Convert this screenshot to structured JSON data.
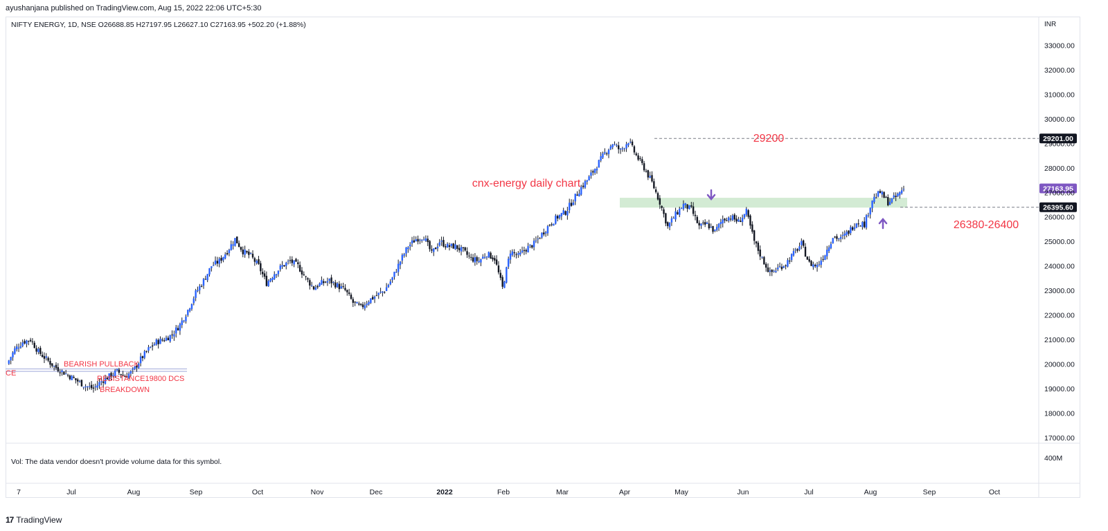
{
  "header": {
    "publisher": "ayushanjana published on TradingView.com, Aug 15, 2022 22:06 UTC+5:30",
    "symbol_line": "NIFTY ENERGY, 1D, NSE  O26688.85  H27197.95  L26627.10  C27163.95  +502.20 (+1.88%)"
  },
  "volume_note": "Vol: The data vendor doesn't provide volume data for this symbol.",
  "footer": {
    "brand": "TradingView",
    "logo": "17"
  },
  "colors": {
    "up": "#2962ff",
    "down": "#131722",
    "annotation_red": "#f23645",
    "zone": "#c8e6c9",
    "arrow": "#7e57c2",
    "resistance_line": "#2962ff"
  },
  "chart_data": {
    "type": "candlestick",
    "currency": "INR",
    "y_ticks": [
      "33000.00",
      "32000.00",
      "31000.00",
      "30000.00",
      "29000.00",
      "28000.00",
      "27000.00",
      "26000.00",
      "25000.00",
      "24000.00",
      "23000.00",
      "22000.00",
      "21000.00",
      "20000.00",
      "19000.00",
      "18000.00",
      "17000.00"
    ],
    "x_labels": [
      "7",
      "Jul",
      "Aug",
      "Sep",
      "Oct",
      "Nov",
      "Dec",
      "2022",
      "Feb",
      "Mar",
      "Apr",
      "May",
      "Jun",
      "Jul",
      "Aug",
      "Sep",
      "Oct"
    ],
    "price_tags": [
      {
        "label": "29201.00",
        "style": "dark"
      },
      {
        "label": "27163.95",
        "style": "purple"
      },
      {
        "label": "26395.60",
        "style": "dark"
      }
    ],
    "volume_scale_label": "400M",
    "annotations": {
      "title": "cnx-energy daily chart",
      "level_top": "29200",
      "level_zone": "26380-26400",
      "bearish": "BEARISH PULLBACK",
      "resistance": "RESISTANCE19800 DCS",
      "breakdown": "BREAKDOWN",
      "left_edge": "CE"
    },
    "price_path": [
      [
        0,
        20000
      ],
      [
        4,
        20600
      ],
      [
        8,
        20900
      ],
      [
        12,
        21000
      ],
      [
        16,
        20500
      ],
      [
        20,
        20200
      ],
      [
        24,
        19900
      ],
      [
        28,
        19700
      ],
      [
        32,
        19500
      ],
      [
        36,
        19300
      ],
      [
        40,
        19100
      ],
      [
        44,
        19000
      ],
      [
        48,
        19300
      ],
      [
        52,
        19500
      ],
      [
        56,
        19700
      ],
      [
        60,
        19500
      ],
      [
        64,
        19700
      ],
      [
        68,
        20200
      ],
      [
        72,
        20600
      ],
      [
        76,
        20900
      ],
      [
        80,
        21000
      ],
      [
        84,
        21200
      ],
      [
        88,
        21600
      ],
      [
        92,
        22200
      ],
      [
        96,
        22900
      ],
      [
        100,
        23400
      ],
      [
        104,
        24000
      ],
      [
        108,
        24200
      ],
      [
        112,
        24600
      ],
      [
        116,
        25100
      ],
      [
        120,
        24600
      ],
      [
        124,
        24400
      ],
      [
        128,
        24000
      ],
      [
        132,
        23300
      ],
      [
        136,
        23700
      ],
      [
        140,
        24000
      ],
      [
        144,
        24200
      ],
      [
        148,
        24000
      ],
      [
        152,
        23500
      ],
      [
        156,
        23100
      ],
      [
        160,
        23300
      ],
      [
        164,
        23400
      ],
      [
        168,
        23200
      ],
      [
        172,
        23000
      ],
      [
        176,
        22500
      ],
      [
        180,
        22300
      ],
      [
        184,
        22600
      ],
      [
        188,
        22800
      ],
      [
        192,
        23000
      ],
      [
        196,
        23500
      ],
      [
        200,
        24200
      ],
      [
        204,
        24800
      ],
      [
        208,
        25100
      ],
      [
        212,
        25200
      ],
      [
        216,
        24500
      ],
      [
        220,
        25000
      ],
      [
        224,
        24800
      ],
      [
        228,
        24800
      ],
      [
        232,
        24600
      ],
      [
        236,
        24300
      ],
      [
        240,
        24200
      ],
      [
        244,
        24500
      ],
      [
        248,
        24300
      ],
      [
        252,
        23100
      ],
      [
        256,
        24600
      ],
      [
        260,
        24400
      ],
      [
        264,
        24700
      ],
      [
        268,
        24900
      ],
      [
        272,
        25300
      ],
      [
        276,
        25700
      ],
      [
        280,
        26000
      ],
      [
        284,
        26200
      ],
      [
        288,
        26700
      ],
      [
        292,
        27200
      ],
      [
        296,
        27600
      ],
      [
        300,
        28100
      ],
      [
        304,
        28600
      ],
      [
        308,
        29000
      ],
      [
        312,
        28700
      ],
      [
        316,
        29100
      ],
      [
        320,
        28500
      ],
      [
        324,
        28000
      ],
      [
        328,
        27400
      ],
      [
        332,
        26600
      ],
      [
        336,
        25600
      ],
      [
        340,
        26100
      ],
      [
        344,
        26500
      ],
      [
        348,
        26300
      ],
      [
        352,
        25600
      ],
      [
        356,
        25700
      ],
      [
        360,
        25400
      ],
      [
        364,
        25900
      ],
      [
        368,
        26000
      ],
      [
        372,
        25800
      ],
      [
        376,
        26200
      ],
      [
        380,
        25000
      ],
      [
        384,
        24300
      ],
      [
        388,
        23700
      ],
      [
        392,
        23900
      ],
      [
        396,
        24100
      ],
      [
        400,
        24500
      ],
      [
        404,
        24900
      ],
      [
        408,
        24100
      ],
      [
        412,
        24000
      ],
      [
        416,
        24500
      ],
      [
        420,
        25200
      ],
      [
        424,
        25100
      ],
      [
        428,
        25400
      ],
      [
        432,
        25800
      ],
      [
        436,
        25700
      ],
      [
        440,
        26700
      ],
      [
        444,
        27000
      ],
      [
        448,
        26600
      ],
      [
        452,
        26800
      ],
      [
        456,
        27164
      ]
    ]
  }
}
